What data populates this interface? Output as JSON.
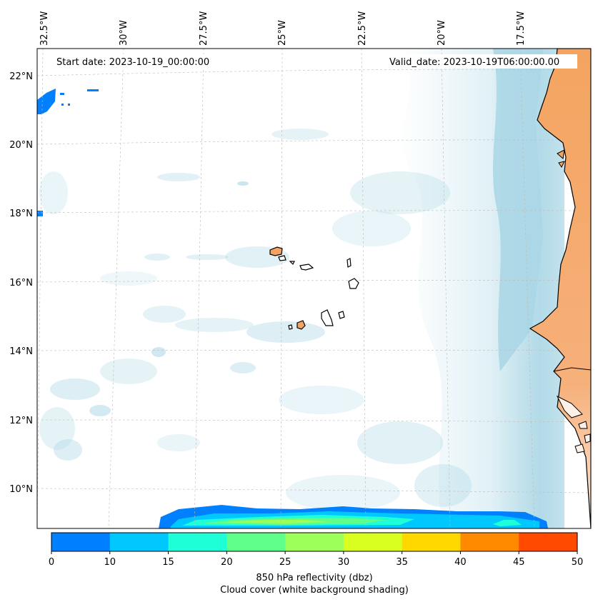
{
  "map": {
    "start_label": "Start date: 2023-10-19_00:00:00",
    "valid_label": "Valid_date: 2023-10-19T06:00:00.00",
    "lon_ticks": [
      "32.5°W",
      "30°W",
      "27.5°W",
      "25°W",
      "22.5°W",
      "20°W",
      "17.5°W"
    ],
    "lat_ticks": [
      "22°N",
      "20°N",
      "18°N",
      "16°N",
      "14°N",
      "12°N",
      "10°N"
    ]
  },
  "colorbar": {
    "title_line1": "850 hPa reflectivity (dbz)",
    "title_line2": "Cloud cover (white background shading)",
    "ticks": [
      "0",
      "10",
      "15",
      "20",
      "25",
      "30",
      "35",
      "40",
      "45",
      "50"
    ],
    "colors": [
      "#0080ff",
      "#00c8ff",
      "#1effd8",
      "#5fff8a",
      "#9cff5a",
      "#d8ff20",
      "#ffd800",
      "#ff8a00",
      "#ff4a00"
    ]
  },
  "colors": {
    "land": "#f4a460",
    "ocean": "#ffffff",
    "cloud": "#a9d6e5",
    "coast": "#000000"
  }
}
